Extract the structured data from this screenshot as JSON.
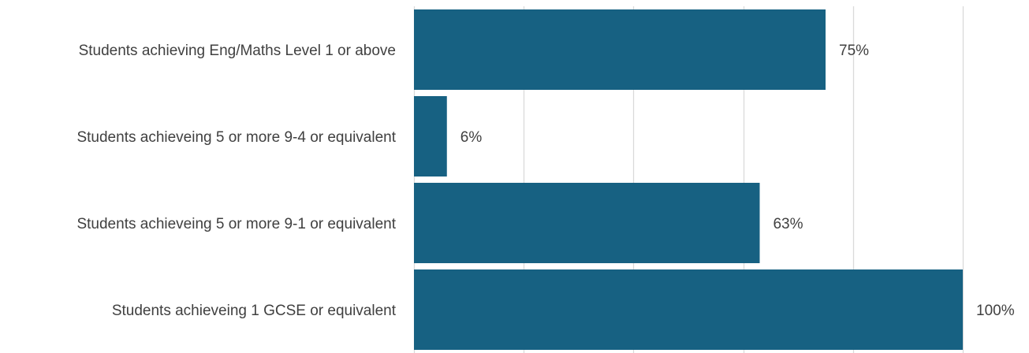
{
  "chart_data": {
    "type": "bar",
    "orientation": "horizontal",
    "categories": [
      "Students achieving Eng/Maths Level 1 or above",
      "Students achieveing 5 or more 9-4 or equivalent",
      "Students achieveing 5 or more 9-1 or equivalent",
      "Students achieveing 1 GCSE or equivalent"
    ],
    "values": [
      75,
      6,
      63,
      100
    ],
    "data_labels": [
      "75%",
      "6%",
      "63%",
      "100%"
    ],
    "unit": "%",
    "xlim": [
      0,
      100
    ],
    "grid": true,
    "gridline_step": 20,
    "legend": "none",
    "colors": {
      "bar": "#176182",
      "grid": "#d9d9d9",
      "text": "#404040"
    }
  }
}
